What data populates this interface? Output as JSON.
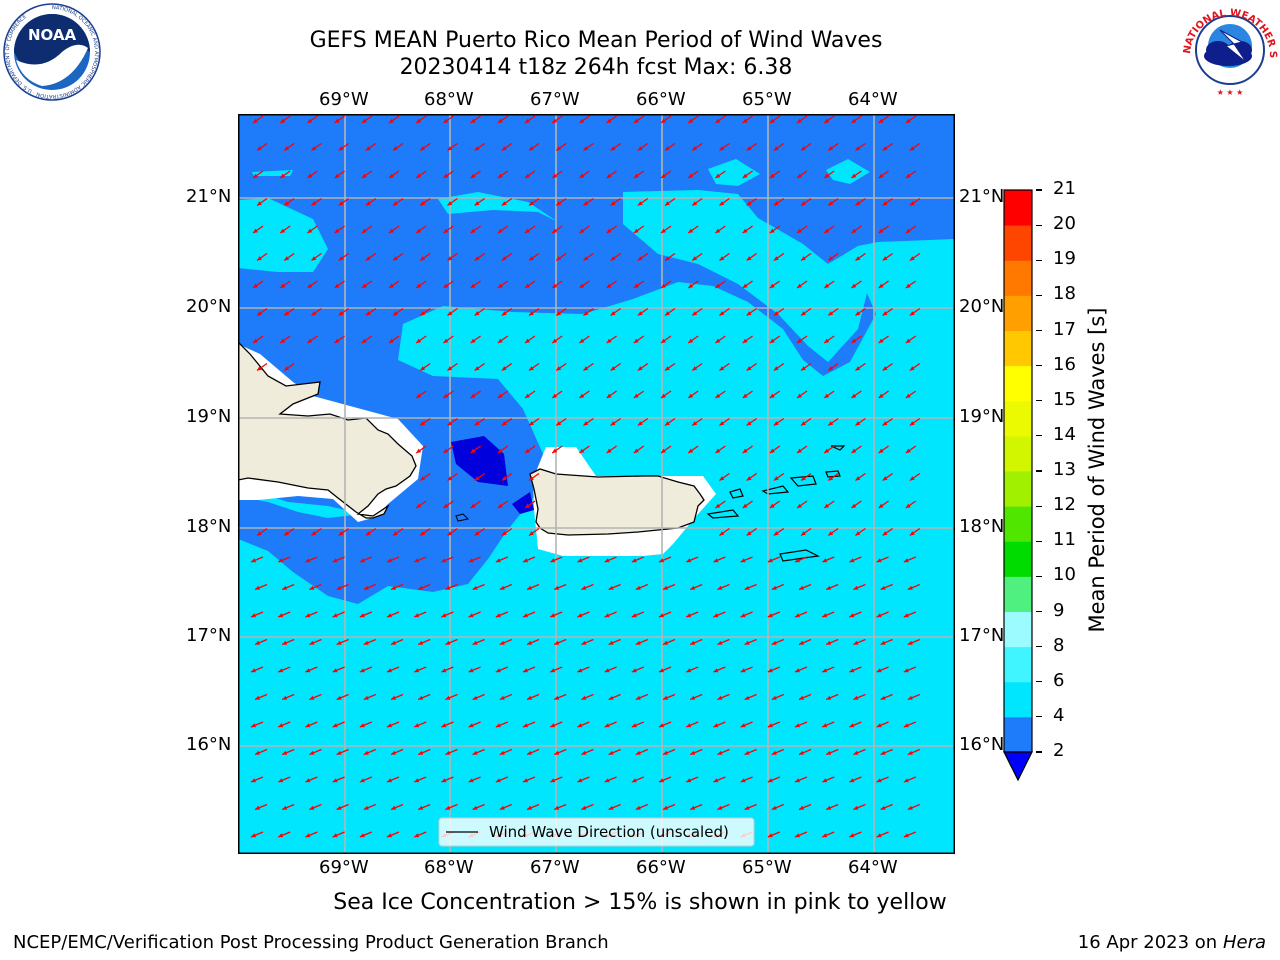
{
  "title_line1": "GEFS MEAN Puerto Rico Mean Period of Wind Waves",
  "title_line2": "20230414 t18z 264h fcst   Max: 6.38",
  "logos": {
    "noaa_text": "NOAA",
    "noaa_ring": "NATIONAL OCEANIC AND ATMOSPHERIC ADMINISTRATION · U.S. DEPARTMENT OF COMMERCE",
    "nws_ring": "NATIONAL WEATHER SERVICE"
  },
  "map": {
    "lon_labels": [
      "69°W",
      "68°W",
      "67°W",
      "66°W",
      "65°W",
      "64°W"
    ],
    "lat_labels": [
      "21°N",
      "20°N",
      "19°N",
      "18°N",
      "17°N",
      "16°N"
    ],
    "legend_label": "Wind Wave Direction (unscaled)",
    "wave_direction": "toward southwest",
    "land_color": "#efecdc",
    "arrow_color": "#ff0000"
  },
  "colorbar": {
    "label": "Mean Period of Wind Waves [s]",
    "ticks": [
      "2",
      "4",
      "6",
      "8",
      "9",
      "10",
      "11",
      "12",
      "13",
      "14",
      "15",
      "16",
      "17",
      "18",
      "19",
      "20",
      "21"
    ],
    "under_color": "#0000ff",
    "colors": [
      "#1e7cfa",
      "#00e6ff",
      "#40f5ff",
      "#9bfbff",
      "#50f080",
      "#00dc00",
      "#50e600",
      "#a0f000",
      "#d2f500",
      "#ebfa00",
      "#ffff00",
      "#ffc800",
      "#ffa000",
      "#ff7800",
      "#ff4600",
      "#ff0000"
    ]
  },
  "sea_ice_note": "Sea Ice Concentration > 15% is shown in pink to yellow",
  "footer": {
    "left": "NCEP/EMC/Verification Post Processing Product Generation Branch",
    "date": "16 Apr 2023 on",
    "host": "Hera"
  }
}
